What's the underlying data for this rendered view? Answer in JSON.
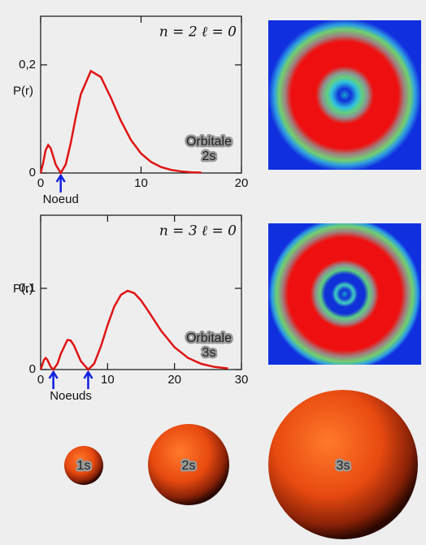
{
  "chart_data": [
    {
      "type": "line",
      "y_label": "P(r)",
      "annotation": "n = 2  ℓ = 0",
      "label": [
        "Orbitale",
        "2s"
      ],
      "node_label": "Noeud",
      "nodes": [
        2
      ],
      "x": [
        0,
        0.25,
        0.5,
        0.75,
        1,
        1.5,
        2,
        2.5,
        3,
        3.5,
        4,
        5,
        6,
        7,
        8,
        9,
        10,
        11,
        12,
        13,
        14,
        15,
        16
      ],
      "values": [
        0,
        0.0185,
        0.0424,
        0.0517,
        0.0458,
        0.0156,
        0,
        0.016,
        0.0557,
        0.1035,
        0.1458,
        0.1886,
        0.1776,
        0.139,
        0.0962,
        0.0609,
        0.0361,
        0.0204,
        0.011,
        0.0057,
        0.0029,
        0.0014,
        0.0007
      ],
      "color": "#e01414",
      "xlim": [
        0,
        20
      ],
      "ylim": [
        0,
        0.29
      ],
      "xticks": [
        0,
        10,
        20
      ],
      "yticks": [
        0,
        {
          "value": 0.2,
          "label": "0,2"
        }
      ]
    },
    {
      "type": "line",
      "y_label": "P(r)",
      "annotation": "n = 3  ℓ = 0",
      "label": [
        "Orbitale",
        "3s"
      ],
      "node_label": "Noeuds",
      "nodes": [
        1.9,
        7.1
      ],
      "x": [
        0,
        0.5,
        0.75,
        1,
        1.5,
        1.9,
        2.5,
        3,
        4,
        4.5,
        5,
        6,
        7.1,
        8,
        9,
        10,
        11,
        12,
        13,
        14,
        15,
        16,
        18,
        20,
        22,
        24,
        26,
        28
      ],
      "values": [
        0,
        0.0119,
        0.0142,
        0.0121,
        0.0033,
        0,
        0.0069,
        0.0192,
        0.0365,
        0.0357,
        0.0293,
        0.0104,
        0,
        0.0073,
        0.0285,
        0.0547,
        0.0776,
        0.0921,
        0.097,
        0.094,
        0.0851,
        0.0731,
        0.0477,
        0.0275,
        0.0144,
        0.007,
        0.0032,
        0.0014
      ],
      "color": "#e01414",
      "xlim": [
        0,
        30
      ],
      "ylim": [
        0,
        0.19
      ],
      "xticks": [
        0,
        10,
        20,
        30
      ],
      "yticks": [
        0,
        {
          "value": 0.1,
          "label": "0,1"
        }
      ]
    }
  ],
  "spheres": [
    "1s",
    "2s",
    "3s"
  ]
}
